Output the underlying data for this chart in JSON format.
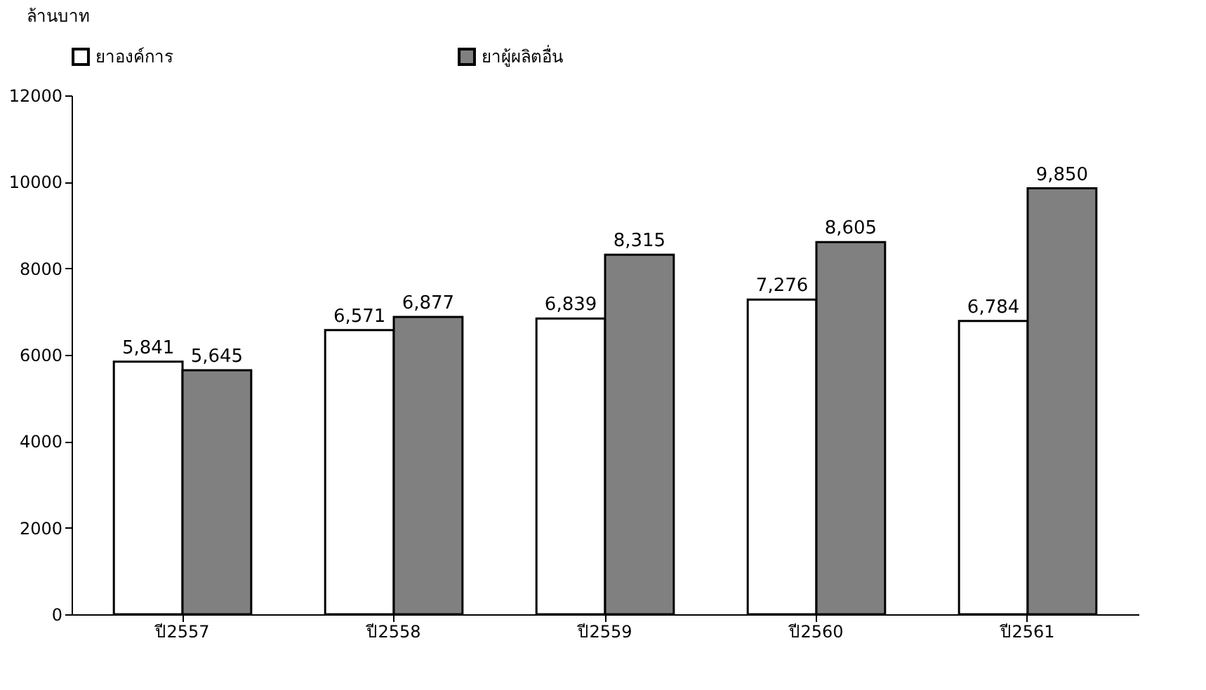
{
  "chart_data": {
    "type": "bar",
    "ylabel": "ล้านบาท",
    "categories": [
      "ปี2557",
      "ปี2558",
      "ปี2559",
      "ปี2560",
      "ปี2561"
    ],
    "series": [
      {
        "name": "ยาองค์การ",
        "color": "#ffffff",
        "values": [
          5841,
          6571,
          6839,
          7276,
          6784
        ],
        "value_labels": [
          "5,841",
          "6,571",
          "6,839",
          "7,276",
          "6,784"
        ]
      },
      {
        "name": "ยาผู้ผลิตอื่น",
        "color": "#808080",
        "values": [
          5645,
          6877,
          8315,
          8605,
          9850
        ],
        "value_labels": [
          "5,645",
          "6,877",
          "8,315",
          "8,605",
          "9,850"
        ]
      }
    ],
    "ylim": [
      0,
      12000
    ],
    "yticks": [
      0,
      2000,
      4000,
      6000,
      8000,
      10000,
      12000
    ],
    "grid": false,
    "legend": "top"
  }
}
